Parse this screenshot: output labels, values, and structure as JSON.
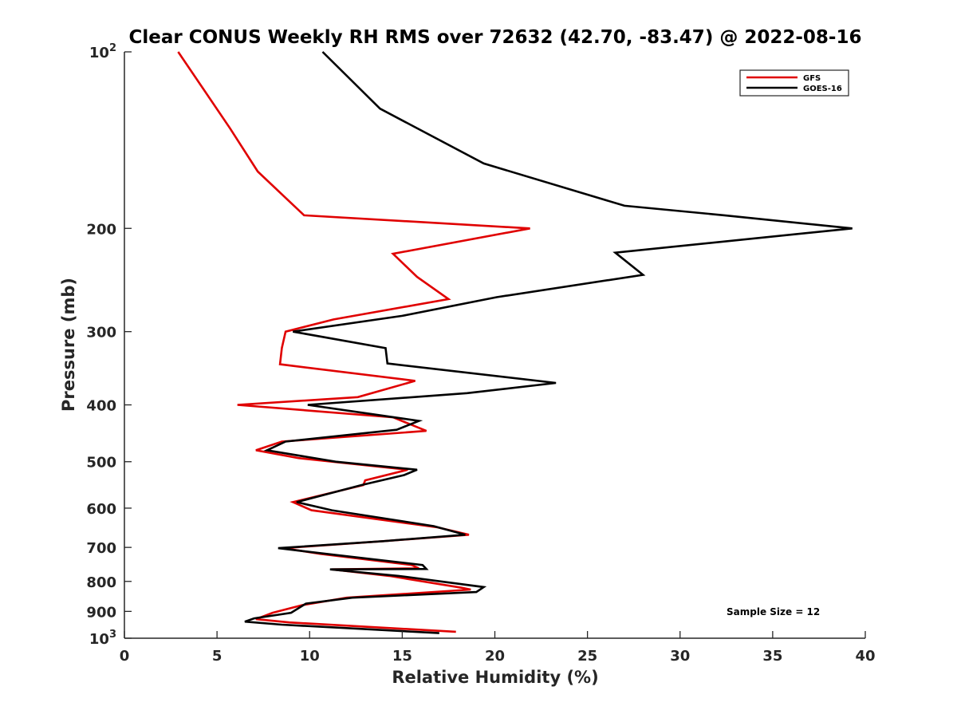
{
  "chart_data": {
    "type": "line",
    "title": "Clear CONUS Weekly RH RMS over 72632 (42.70, -83.47) @ 2022-08-16",
    "xlabel": "Relative Humidity (%)",
    "ylabel": "Pressure (mb)",
    "xlim": [
      0,
      40
    ],
    "ylim": [
      100,
      1000
    ],
    "y_scale": "log",
    "y_direction": "reversed",
    "x_ticks": [
      "0",
      "5",
      "10",
      "15",
      "20",
      "25",
      "30",
      "35",
      "40"
    ],
    "y_ticks": [
      {
        "value": 100,
        "base": "10",
        "exp": "2"
      },
      {
        "value": 200,
        "label": "200"
      },
      {
        "value": 300,
        "label": "300"
      },
      {
        "value": 400,
        "label": "400"
      },
      {
        "value": 500,
        "label": "500"
      },
      {
        "value": 600,
        "label": "600"
      },
      {
        "value": 700,
        "label": "700"
      },
      {
        "value": 800,
        "label": "800"
      },
      {
        "value": 900,
        "label": "900"
      },
      {
        "value": 1000,
        "base": "10",
        "exp": "3"
      }
    ],
    "grid": false,
    "legend_position": "top-right",
    "annotation": "Sample Size = 12",
    "series": [
      {
        "name": "GFS",
        "color": "#e00000",
        "points": [
          [
            2.9,
            100
          ],
          [
            5.7,
            135
          ],
          [
            7.2,
            160
          ],
          [
            9.7,
            190
          ],
          [
            21.9,
            200
          ],
          [
            14.5,
            221
          ],
          [
            15.8,
            242
          ],
          [
            17.5,
            264
          ],
          [
            11.3,
            286
          ],
          [
            8.7,
            300
          ],
          [
            8.5,
            320
          ],
          [
            8.4,
            341
          ],
          [
            15.7,
            364
          ],
          [
            12.6,
            388
          ],
          [
            6.1,
            400
          ],
          [
            14.5,
            420
          ],
          [
            16.3,
            443
          ],
          [
            8.5,
            462
          ],
          [
            7.1,
            478
          ],
          [
            9.4,
            493
          ],
          [
            15.3,
            516
          ],
          [
            13.0,
            538
          ],
          [
            12.9,
            548
          ],
          [
            9.1,
            586
          ],
          [
            10.1,
            605
          ],
          [
            16.9,
            647
          ],
          [
            18.6,
            666
          ],
          [
            14.0,
            683
          ],
          [
            8.6,
            702
          ],
          [
            10.6,
            718
          ],
          [
            15.5,
            750
          ],
          [
            15.9,
            760
          ],
          [
            11.2,
            763
          ],
          [
            14.3,
            783
          ],
          [
            18.2,
            820
          ],
          [
            18.7,
            826
          ],
          [
            12.0,
            853
          ],
          [
            9.6,
            878
          ],
          [
            8.0,
            905
          ],
          [
            7.1,
            928
          ],
          [
            8.9,
            940
          ],
          [
            17.9,
            975
          ]
        ]
      },
      {
        "name": "GOES-16",
        "color": "#000000",
        "points": [
          [
            10.7,
            100
          ],
          [
            13.8,
            125
          ],
          [
            19.4,
            155
          ],
          [
            27.0,
            183
          ],
          [
            32.4,
            190
          ],
          [
            39.3,
            200
          ],
          [
            26.5,
            220
          ],
          [
            28.0,
            240
          ],
          [
            20.1,
            262
          ],
          [
            15.0,
            282
          ],
          [
            9.1,
            300
          ],
          [
            14.1,
            320
          ],
          [
            14.2,
            340
          ],
          [
            23.3,
            367
          ],
          [
            18.5,
            382
          ],
          [
            9.9,
            400
          ],
          [
            15.9,
            426
          ],
          [
            14.7,
            441
          ],
          [
            8.7,
            462
          ],
          [
            7.7,
            478
          ],
          [
            11.4,
            500
          ],
          [
            15.8,
            516
          ],
          [
            15.1,
            527
          ],
          [
            12.8,
            548
          ],
          [
            9.3,
            586
          ],
          [
            11.2,
            605
          ],
          [
            16.7,
            644
          ],
          [
            18.4,
            666
          ],
          [
            14.0,
            683
          ],
          [
            8.3,
            702
          ],
          [
            11.2,
            720
          ],
          [
            16.1,
            750
          ],
          [
            16.3,
            762
          ],
          [
            11.1,
            763
          ],
          [
            14.8,
            783
          ],
          [
            19.4,
            818
          ],
          [
            19.0,
            834
          ],
          [
            12.3,
            853
          ],
          [
            9.8,
            873
          ],
          [
            9.0,
            905
          ],
          [
            7.0,
            925
          ],
          [
            6.5,
            937
          ],
          [
            8.5,
            948
          ],
          [
            17.0,
            980
          ]
        ]
      }
    ]
  }
}
